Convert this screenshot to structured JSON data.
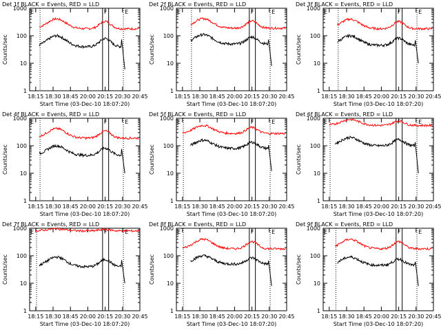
{
  "chart_data": [
    {
      "type": "line",
      "title": "Det 1f BLACK = Events, RED = LLD",
      "xlabel": "Start Time (03-Dec-10 18:07:20)",
      "ylabel": "Counts/sec",
      "yscale": "log",
      "ylim": [
        1,
        1000
      ],
      "x_ticks": [
        "18:15",
        "18:30",
        "18:45",
        "20:00",
        "20:15",
        "20:30",
        "20:45"
      ],
      "y_ticks": [
        "1",
        "10",
        "100",
        "1000"
      ],
      "markers": [
        {
          "label": "F",
          "style": "solid"
        },
        {
          "label": "E",
          "style": "dotted"
        }
      ],
      "series": [
        {
          "color": "#ff0000",
          "peak": 410,
          "base": 180,
          "start": "18:18",
          "end": "20:44"
        },
        {
          "color": "#000000",
          "peak": 100,
          "base": 40,
          "start": "18:18",
          "end": "20:32",
          "drop": 6
        }
      ]
    },
    {
      "type": "line",
      "title": "Det 2f BLACK = Events, RED = LLD",
      "xlabel": "Start Time (03-Dec-10 18:07:20)",
      "ylabel": "Counts/sec",
      "yscale": "log",
      "ylim": [
        1,
        1000
      ],
      "x_ticks": [
        "18:15",
        "18:30",
        "18:45",
        "20:00",
        "20:15",
        "20:30",
        "20:45"
      ],
      "y_ticks": [
        "1",
        "10",
        "100",
        "1000"
      ],
      "markers": [
        {
          "label": "F",
          "style": "solid"
        },
        {
          "label": "E",
          "style": "dotted"
        }
      ],
      "series": [
        {
          "color": "#ff0000",
          "peak": 420,
          "base": 190,
          "start": "18:22",
          "end": "20:44"
        },
        {
          "color": "#000000",
          "peak": 110,
          "base": 50,
          "start": "18:22",
          "end": "20:32",
          "drop": 8
        }
      ]
    },
    {
      "type": "line",
      "title": "Det 3f BLACK = Events, RED = LLD",
      "xlabel": "Start Time (03-Dec-10 18:07:20)",
      "ylabel": "Counts/sec",
      "yscale": "log",
      "ylim": [
        1,
        1000
      ],
      "x_ticks": [
        "18:15",
        "18:30",
        "18:45",
        "20:00",
        "20:15",
        "20:30",
        "20:45"
      ],
      "y_ticks": [
        "1",
        "10",
        "100",
        "1000"
      ],
      "markers": [
        {
          "label": "F",
          "style": "solid"
        },
        {
          "label": "E",
          "style": "dotted"
        }
      ],
      "series": [
        {
          "color": "#ff0000",
          "peak": 400,
          "base": 180,
          "start": "18:22",
          "end": "20:44"
        },
        {
          "color": "#000000",
          "peak": 100,
          "base": 45,
          "start": "18:22",
          "end": "20:32",
          "drop": 10
        }
      ]
    },
    {
      "type": "line",
      "title": "Det 4f BLACK = Events, RED = LLD",
      "xlabel": "Start Time (03-Dec-10 18:07:20)",
      "ylabel": "Counts/sec",
      "yscale": "log",
      "ylim": [
        1,
        1000
      ],
      "x_ticks": [
        "18:15",
        "18:30",
        "18:45",
        "20:00",
        "20:15",
        "20:30",
        "20:45"
      ],
      "y_ticks": [
        "1",
        "10",
        "100",
        "1000"
      ],
      "markers": [
        {
          "label": "F",
          "style": "solid"
        },
        {
          "label": "E",
          "style": "dotted"
        }
      ],
      "series": [
        {
          "color": "#ff0000",
          "peak": 420,
          "base": 190,
          "start": "18:18",
          "end": "20:44"
        },
        {
          "color": "#000000",
          "peak": 100,
          "base": 45,
          "start": "18:18",
          "end": "20:32",
          "drop": 10
        }
      ]
    },
    {
      "type": "line",
      "title": "Det 5f BLACK = Events, RED = LLD",
      "xlabel": "Start Time (03-Dec-10 18:07:20)",
      "ylabel": "Counts/sec",
      "yscale": "log",
      "ylim": [
        1,
        1000
      ],
      "x_ticks": [
        "18:15",
        "18:30",
        "18:45",
        "20:00",
        "20:15",
        "20:30",
        "20:45"
      ],
      "y_ticks": [
        "1",
        "10",
        "100",
        "1000"
      ],
      "markers": [
        {
          "label": "F",
          "style": "solid"
        },
        {
          "label": "E",
          "style": "dotted"
        }
      ],
      "series": [
        {
          "color": "#ff0000",
          "peak": 550,
          "base": 280,
          "start": "18:15",
          "end": "20:44"
        },
        {
          "color": "#000000",
          "peak": 160,
          "base": 80,
          "start": "18:22",
          "end": "20:32",
          "drop": 12
        }
      ]
    },
    {
      "type": "line",
      "title": "Det 6f BLACK = Events, RED = LLD",
      "xlabel": "Start Time (03-Dec-10 18:07:20)",
      "ylabel": "Counts/sec",
      "yscale": "log",
      "ylim": [
        1,
        1000
      ],
      "x_ticks": [
        "18:15",
        "18:30",
        "18:45",
        "20:00",
        "20:15",
        "20:30",
        "20:45"
      ],
      "y_ticks": [
        "1",
        "10",
        "100",
        "1000"
      ],
      "markers": [
        {
          "label": "F",
          "style": "solid"
        },
        {
          "label": "E",
          "style": "dotted"
        }
      ],
      "series": [
        {
          "color": "#ff0000",
          "peak": 900,
          "base": 550,
          "start": "18:15",
          "end": "20:44"
        },
        {
          "color": "#000000",
          "peak": 200,
          "base": 100,
          "start": "18:20",
          "end": "20:32",
          "drop": 10
        }
      ]
    },
    {
      "type": "line",
      "title": "Det 7f BLACK = Events, RED = LLD",
      "xlabel": "Start Time (03-Dec-10 18:07:20)",
      "ylabel": "Counts/sec",
      "yscale": "log",
      "ylim": [
        1,
        1000
      ],
      "x_ticks": [
        "18:15",
        "18:30",
        "18:45",
        "20:00",
        "20:15",
        "20:30",
        "20:45"
      ],
      "y_ticks": [
        "1",
        "10",
        "100",
        "1000"
      ],
      "markers": [
        {
          "label": "F",
          "style": "solid"
        },
        {
          "label": "E",
          "style": "dotted"
        }
      ],
      "series": [
        {
          "color": "#ff0000",
          "peak": 950,
          "base": 800,
          "start": "18:15",
          "end": "20:44"
        },
        {
          "color": "#000000",
          "peak": 90,
          "base": 40,
          "start": "18:18",
          "end": "20:32",
          "drop": 10
        }
      ]
    },
    {
      "type": "line",
      "title": "Det 8f BLACK = Events, RED = LLD",
      "xlabel": "Start Time (03-Dec-10 18:07:20)",
      "ylabel": "Counts/sec",
      "yscale": "log",
      "ylim": [
        1,
        1000
      ],
      "x_ticks": [
        "18:15",
        "18:30",
        "18:45",
        "20:00",
        "20:15",
        "20:30",
        "20:45"
      ],
      "y_ticks": [
        "1",
        "10",
        "100",
        "1000"
      ],
      "markers": [
        {
          "label": "F",
          "style": "solid"
        },
        {
          "label": "E",
          "style": "dotted"
        }
      ],
      "series": [
        {
          "color": "#ff0000",
          "peak": 400,
          "base": 180,
          "start": "18:15",
          "end": "20:44"
        },
        {
          "color": "#000000",
          "peak": 100,
          "base": 50,
          "start": "18:22",
          "end": "20:32",
          "drop": 8
        }
      ]
    },
    {
      "type": "line",
      "title": "Det 9f BLACK = Events, RED = LLD",
      "xlabel": "Start Time (03-Dec-10 18:07:20)",
      "ylabel": "Counts/sec",
      "yscale": "log",
      "ylim": [
        1,
        1000
      ],
      "x_ticks": [
        "18:15",
        "18:30",
        "18:45",
        "20:00",
        "20:15",
        "20:30",
        "20:45"
      ],
      "y_ticks": [
        "1",
        "10",
        "100",
        "1000"
      ],
      "markers": [
        {
          "label": "F",
          "style": "solid"
        },
        {
          "label": "E",
          "style": "dotted"
        }
      ],
      "series": [
        {
          "color": "#ff0000",
          "peak": 400,
          "base": 180,
          "start": "18:20",
          "end": "20:44"
        },
        {
          "color": "#000000",
          "peak": 90,
          "base": 45,
          "start": "18:22",
          "end": "20:32",
          "drop": 8
        }
      ]
    }
  ]
}
